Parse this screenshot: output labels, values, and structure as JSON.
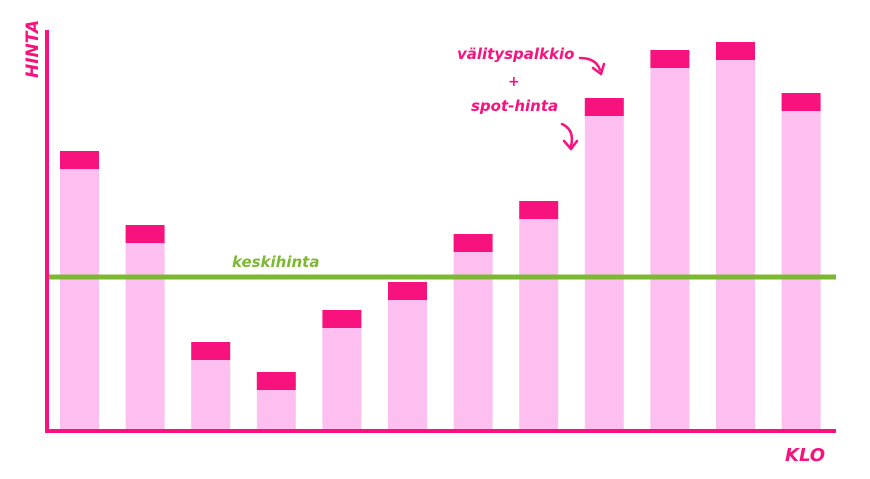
{
  "chart_data": {
    "type": "bar",
    "stacked": true,
    "xlabel": "KLO",
    "ylabel": "HINTA",
    "categories": [
      "",
      "",
      "",
      "",
      "",
      "",
      "",
      "",
      "",
      "",
      "",
      ""
    ],
    "series": [
      {
        "name": "spot-hinta",
        "color": "#fdbff0",
        "values": [
          262,
          188,
          71,
          41,
          103,
          131,
          179,
          212,
          315,
          363,
          371,
          320
        ]
      },
      {
        "name": "välityspalkkio",
        "color": "#f7127e",
        "values": [
          18,
          18,
          18,
          18,
          18,
          18,
          18,
          18,
          18,
          18,
          18,
          18
        ]
      }
    ],
    "ylim": [
      0,
      390
    ],
    "average_line": {
      "label": "keskihinta",
      "value": 154,
      "color": "#7cb832"
    },
    "annotation": {
      "line1": "välityspalkkio",
      "plus": "+",
      "line2": "spot-hinta"
    },
    "ticks_shown": false,
    "grid": false,
    "legend": "none"
  },
  "colors": {
    "axis": "#f7127e",
    "label": "#f7127e"
  }
}
